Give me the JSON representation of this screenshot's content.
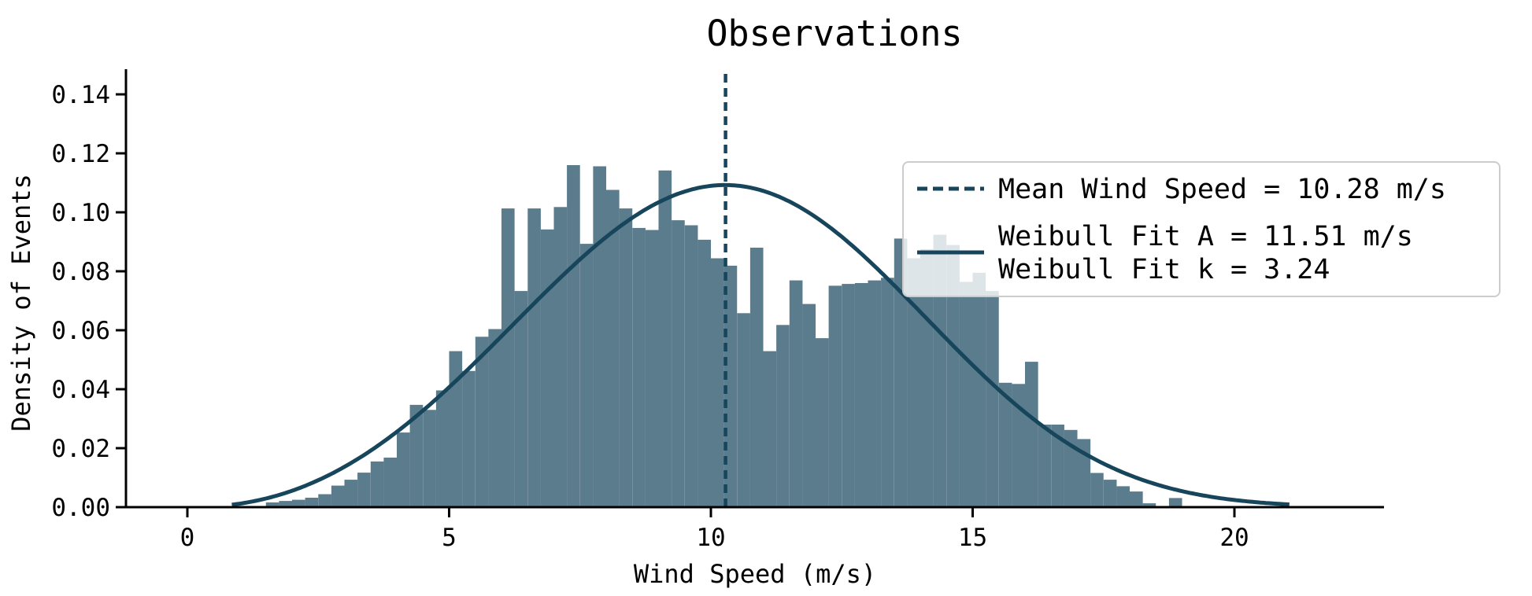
{
  "title": "Observations",
  "axes": {
    "xlabel": "Wind Speed (m/s)",
    "ylabel": "Density of Events",
    "x_ticks": [
      "0",
      "5",
      "10",
      "15",
      "20"
    ],
    "x_tick_values": [
      0,
      5,
      10,
      15,
      20
    ],
    "y_ticks": [
      "0.00",
      "0.02",
      "0.04",
      "0.06",
      "0.08",
      "0.10",
      "0.12",
      "0.14"
    ],
    "y_tick_values": [
      0.0,
      0.02,
      0.04,
      0.06,
      0.08,
      0.1,
      0.12,
      0.14
    ],
    "xlim": [
      -1.17,
      22.86
    ],
    "ylim": [
      0,
      0.1485
    ],
    "grid": false
  },
  "legend": {
    "position": "upper right",
    "mean_label": "Mean Wind Speed = 10.28 m/s",
    "weibull_a_label": "Weibull Fit A   = 11.51 m/s",
    "weibull_k_label": "Weibull Fit k   = 3.24"
  },
  "chart_data": {
    "type": "bar",
    "subtype": "histogram-with-fit",
    "title": "Observations",
    "xlabel": "Wind Speed (m/s)",
    "ylabel": "Density of Events",
    "xlim": [
      -1.17,
      22.86
    ],
    "ylim": [
      0,
      0.1485
    ],
    "legend_position": "upper right",
    "mean_wind_speed_ms": 10.28,
    "weibull_fit_A_ms": 11.51,
    "weibull_fit_k": 3.24,
    "histogram": {
      "bin_start": 1.5,
      "bin_width": 0.25,
      "densities": [
        0.0016,
        0.0021,
        0.0025,
        0.0032,
        0.0044,
        0.0073,
        0.0093,
        0.0117,
        0.0155,
        0.0168,
        0.0253,
        0.0347,
        0.033,
        0.0396,
        0.0529,
        0.0462,
        0.0578,
        0.0604,
        0.1013,
        0.0733,
        0.1013,
        0.0942,
        0.1018,
        0.116,
        0.0893,
        0.1156,
        0.1076,
        0.1013,
        0.0947,
        0.094,
        0.1142,
        0.0973,
        0.0956,
        0.0907,
        0.0844,
        0.0819,
        0.0658,
        0.088,
        0.0529,
        0.0618,
        0.0769,
        0.0689,
        0.0573,
        0.0751,
        0.0757,
        0.076,
        0.0769,
        0.0778,
        0.0911,
        0.0844,
        0.0875,
        0.0924,
        0.0889,
        0.0764,
        0.0795,
        0.0733,
        0.0422,
        0.0418,
        0.0493,
        0.028,
        0.028,
        0.0262,
        0.0231,
        0.0116,
        0.0093,
        0.0071,
        0.0053,
        0.0013,
        0.0,
        0.0031
      ]
    },
    "weibull_curve": {
      "A": 11.51,
      "k": 3.24,
      "x_start": 0.85,
      "x_end": 21.1
    },
    "mean_line": {
      "x": 10.28,
      "style": "dashed"
    }
  },
  "colors": {
    "bar_fill": "#5b7c8c",
    "fit_line": "#17465c",
    "mean_line": "#17465c",
    "axis": "#000000",
    "legend_border": "#cccccc",
    "legend_background": "rgba(255,255,255,0.8)",
    "background": "#ffffff"
  }
}
